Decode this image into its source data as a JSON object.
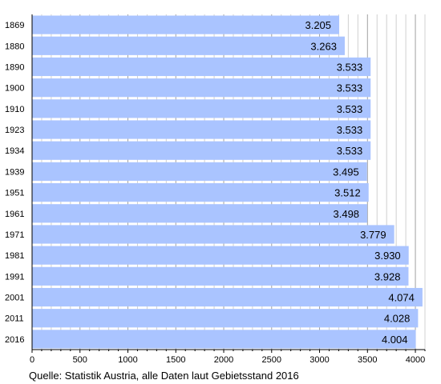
{
  "chart_data": {
    "type": "bar",
    "orientation": "horizontal",
    "categories": [
      "1869",
      "1880",
      "1890",
      "1900",
      "1910",
      "1923",
      "1934",
      "1939",
      "1951",
      "1961",
      "1971",
      "1981",
      "1991",
      "2001",
      "2011",
      "2016"
    ],
    "values": [
      3205,
      3263,
      3533,
      3533,
      3533,
      3533,
      3533,
      3495,
      3512,
      3498,
      3779,
      3930,
      3928,
      4074,
      4028,
      4004
    ],
    "value_labels": [
      "3.205",
      "3.263",
      "3.533",
      "3.533",
      "3.533",
      "3.533",
      "3.533",
      "3.495",
      "3.512",
      "3.498",
      "3.779",
      "3.930",
      "3.928",
      "4.074",
      "4.028",
      "4.004"
    ],
    "xlim": [
      0,
      4100
    ],
    "x_ticks": [
      "0",
      "500",
      "1000",
      "1500",
      "2000",
      "2500",
      "3000",
      "3500",
      "4000"
    ],
    "x_tick_values": [
      0,
      500,
      1000,
      1500,
      2000,
      2500,
      3000,
      3500,
      4000
    ],
    "grid": true,
    "bar_color": "#aac4ff",
    "grid_color": "#d0d0d0",
    "grid_major_color": "#a0a0a0"
  },
  "source": "Quelle: Statistik Austria, alle Daten laut Gebietsstand 2016"
}
